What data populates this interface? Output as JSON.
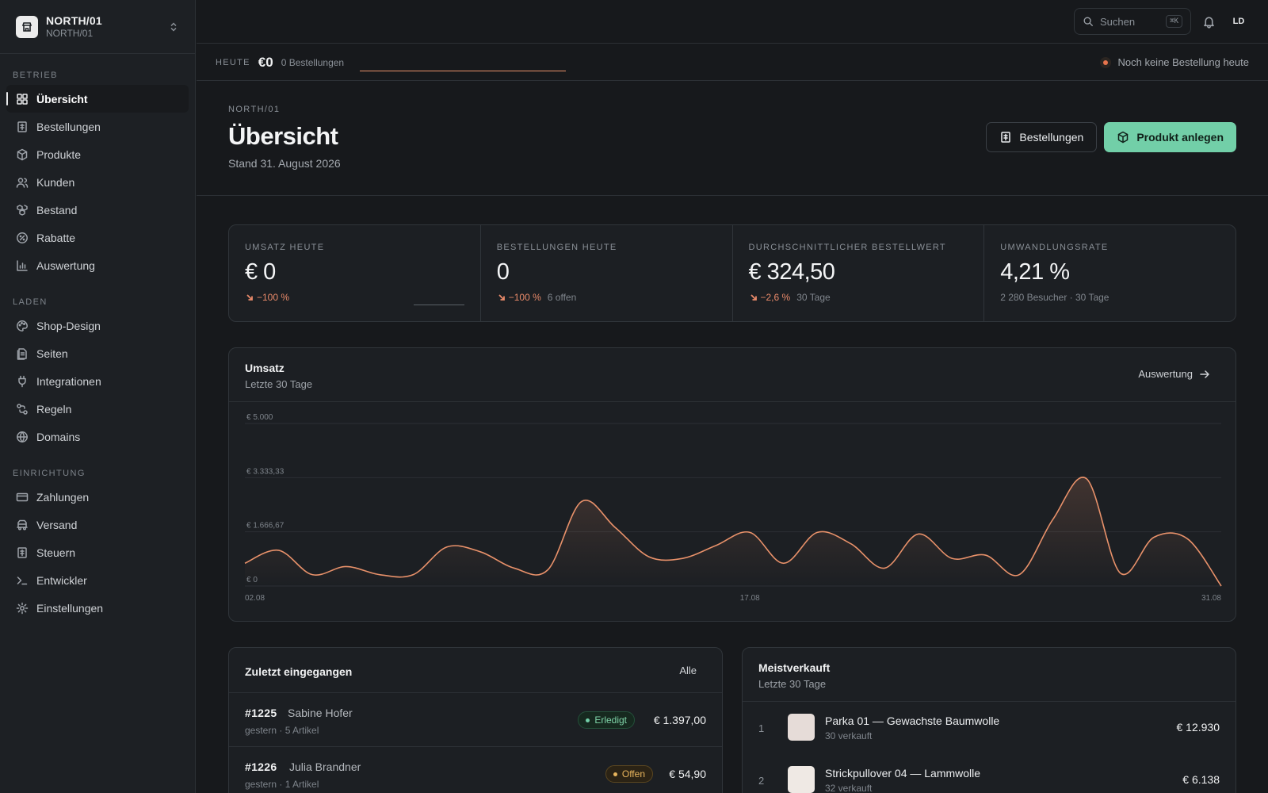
{
  "store": {
    "name": "NORTH/01",
    "sub": "NORTH/01"
  },
  "nav": {
    "sections": [
      {
        "heading": "BETRIEB",
        "items": [
          {
            "label": "Übersicht",
            "icon": "grid-icon",
            "active": true
          },
          {
            "label": "Bestellungen",
            "icon": "receipt-icon"
          },
          {
            "label": "Produkte",
            "icon": "box-icon"
          },
          {
            "label": "Kunden",
            "icon": "users-icon"
          },
          {
            "label": "Bestand",
            "icon": "boxes-icon"
          },
          {
            "label": "Rabatte",
            "icon": "discount-icon"
          },
          {
            "label": "Auswertung",
            "icon": "bar-chart-icon"
          }
        ]
      },
      {
        "heading": "LADEN",
        "items": [
          {
            "label": "Shop-Design",
            "icon": "palette-icon"
          },
          {
            "label": "Seiten",
            "icon": "pages-icon"
          },
          {
            "label": "Integrationen",
            "icon": "plug-icon"
          },
          {
            "label": "Regeln",
            "icon": "workflow-icon"
          },
          {
            "label": "Domains",
            "icon": "globe-icon"
          }
        ]
      },
      {
        "heading": "EINRICHTUNG",
        "items": [
          {
            "label": "Zahlungen",
            "icon": "credit-card-icon"
          },
          {
            "label": "Versand",
            "icon": "truck-icon"
          },
          {
            "label": "Steuern",
            "icon": "tax-icon"
          },
          {
            "label": "Entwickler",
            "icon": "terminal-icon"
          },
          {
            "label": "Einstellungen",
            "icon": "gear-icon"
          }
        ]
      }
    ]
  },
  "topbar": {
    "search_placeholder": "Suchen",
    "shortcut": "⌘K",
    "avatar": "LD"
  },
  "ticker": {
    "label": "HEUTE",
    "value": "€0",
    "orders": "0 Bestellungen",
    "status": "Noch keine Bestellung heute"
  },
  "header": {
    "crumb": "NORTH/01",
    "title": "Übersicht",
    "subtitle": "Stand 31. August 2026",
    "btn_orders": "Bestellungen",
    "btn_create": "Produkt anlegen"
  },
  "kpis": [
    {
      "label": "UMSATZ HEUTE",
      "value": "€ 0",
      "delta": "−100 %",
      "note": ""
    },
    {
      "label": "BESTELLUNGEN HEUTE",
      "value": "0",
      "delta": "−100 %",
      "note": "6 offen"
    },
    {
      "label": "DURCHSCHNITTLICHER BESTELLWERT",
      "value": "€ 324,50",
      "delta": "−2,6 %",
      "note": "30 Tage"
    },
    {
      "label": "UMWANDLUNGSRATE",
      "value": "4,21 %",
      "delta": "",
      "note": "2 280 Besucher · 30 Tage"
    }
  ],
  "chart_card": {
    "title": "Umsatz",
    "subtitle": "Letzte 30 Tage",
    "link": "Auswertung"
  },
  "chart_data": {
    "type": "area",
    "title": "Umsatz",
    "subtitle": "Letzte 30 Tage",
    "x": [
      "02.08",
      "03.08",
      "04.08",
      "05.08",
      "06.08",
      "07.08",
      "08.08",
      "09.08",
      "10.08",
      "11.08",
      "12.08",
      "13.08",
      "14.08",
      "15.08",
      "16.08",
      "17.08",
      "18.08",
      "19.08",
      "20.08",
      "21.08",
      "22.08",
      "23.08",
      "24.08",
      "25.08",
      "26.08",
      "27.08",
      "28.08",
      "29.08",
      "30.08",
      "31.08"
    ],
    "x_tick_labels": [
      "02.08",
      "17.08",
      "31.08"
    ],
    "values": [
      700,
      1100,
      350,
      600,
      350,
      350,
      1200,
      1050,
      550,
      500,
      2600,
      1800,
      900,
      850,
      1250,
      1650,
      700,
      1650,
      1300,
      550,
      1600,
      850,
      950,
      350,
      2050,
      3300,
      400,
      1500,
      1450,
      0
    ],
    "y_tick_labels": [
      "€ 0",
      "€ 1.666,67",
      "€ 3.333,33",
      "€ 5.000"
    ],
    "ylim": [
      0,
      5000
    ],
    "line_color": "#e8916a",
    "grid": true
  },
  "recent": {
    "title": "Zuletzt eingegangen",
    "link": "Alle",
    "orders": [
      {
        "id": "#1225",
        "name": "Sabine Hofer",
        "meta": "gestern · 5 Artikel",
        "status": "Erledigt",
        "amount": "€ 1.397,00"
      },
      {
        "id": "#1226",
        "name": "Julia Brandner",
        "meta": "gestern · 1 Artikel",
        "status": "Offen",
        "amount": "€ 54,90"
      }
    ]
  },
  "top": {
    "title": "Meistverkauft",
    "subtitle": "Letzte 30 Tage",
    "products": [
      {
        "rank": "1",
        "name": "Parka 01 — Gewachste Baumwolle",
        "sold": "30 verkauft",
        "amount": "€ 12.930",
        "thumb_color": "#e6dcd8"
      },
      {
        "rank": "2",
        "name": "Strickpullover 04 — Lammwolle",
        "sold": "32 verkauft",
        "amount": "€ 6.138",
        "thumb_color": "#efe9e4"
      }
    ]
  },
  "colors": {
    "accent": "#72cfa8",
    "chart_line": "#e8916a",
    "negative": "#e98a6a",
    "background": "#17191c"
  }
}
